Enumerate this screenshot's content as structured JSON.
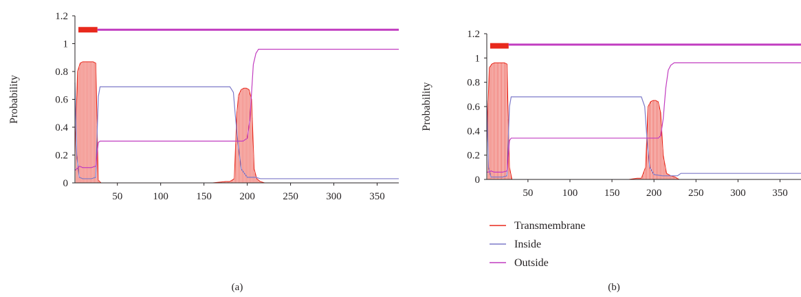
{
  "colors": {
    "transmembrane": "#e8291c",
    "transmembrane_fill": "#f08a82",
    "inside": "#7b78c8",
    "outside": "#c13cc0",
    "axis": "#231f20"
  },
  "legend": {
    "items": [
      {
        "label": "Transmembrane",
        "color": "#e8291c"
      },
      {
        "label": "Inside",
        "color": "#7b78c8"
      },
      {
        "label": "Outside",
        "color": "#c13cc0"
      }
    ]
  },
  "chart_data": [
    {
      "type": "line",
      "panel_label": "(a)",
      "ylabel": "Probability",
      "xlabel": "",
      "xlim": [
        1,
        375
      ],
      "ylim": [
        0,
        1.2
      ],
      "xticks": [
        50,
        100,
        150,
        200,
        250,
        300,
        350
      ],
      "yticks": [
        0,
        0.2,
        0.4,
        0.6,
        0.8,
        1,
        1.2
      ],
      "ytick_labels": [
        "0",
        "0.2",
        "0.4",
        "0.6",
        "0.8",
        "1",
        "1.2"
      ],
      "grid": false,
      "topology_bars": [
        {
          "series": "Transmembrane",
          "x": [
            5,
            27
          ],
          "y": 1.1
        },
        {
          "series": "Outside",
          "x": [
            27,
            375
          ],
          "y": 1.1
        }
      ],
      "series": [
        {
          "name": "Transmembrane",
          "kind": "impulse",
          "x": [
            1,
            4,
            7,
            10,
            13,
            16,
            19,
            22,
            25,
            28,
            31,
            40,
            60,
            80,
            100,
            120,
            140,
            160,
            175,
            180,
            185,
            188,
            190,
            193,
            196,
            199,
            202,
            205,
            208,
            211,
            215,
            220,
            230,
            250,
            300,
            375
          ],
          "y": [
            0.2,
            0.8,
            0.86,
            0.87,
            0.87,
            0.87,
            0.87,
            0.87,
            0.86,
            0.02,
            0.0,
            0.0,
            0.0,
            0.0,
            0.0,
            0.0,
            0.0,
            0.0,
            0.01,
            0.01,
            0.03,
            0.5,
            0.63,
            0.67,
            0.68,
            0.68,
            0.67,
            0.6,
            0.1,
            0.03,
            0.01,
            0.0,
            0.0,
            0.0,
            0.0,
            0.0
          ]
        },
        {
          "name": "Inside",
          "kind": "line",
          "x": [
            1,
            3,
            6,
            10,
            20,
            25,
            28,
            30,
            40,
            100,
            180,
            184,
            186,
            189,
            193,
            200,
            205,
            210,
            215,
            220,
            250,
            300,
            375
          ],
          "y": [
            0.72,
            0.2,
            0.04,
            0.03,
            0.03,
            0.04,
            0.62,
            0.69,
            0.69,
            0.69,
            0.69,
            0.65,
            0.5,
            0.3,
            0.1,
            0.04,
            0.04,
            0.04,
            0.03,
            0.03,
            0.03,
            0.03,
            0.03
          ]
        },
        {
          "name": "Outside",
          "kind": "line",
          "x": [
            1,
            3,
            6,
            10,
            20,
            25,
            28,
            30,
            40,
            100,
            180,
            195,
            200,
            203,
            205,
            207,
            210,
            213,
            216,
            220,
            250,
            300,
            375
          ],
          "y": [
            0.09,
            0.1,
            0.12,
            0.11,
            0.11,
            0.12,
            0.29,
            0.3,
            0.3,
            0.3,
            0.3,
            0.3,
            0.32,
            0.45,
            0.65,
            0.85,
            0.93,
            0.96,
            0.96,
            0.96,
            0.96,
            0.96,
            0.96
          ]
        }
      ]
    },
    {
      "type": "line",
      "panel_label": "(b)",
      "ylabel": "Probability",
      "xlabel": "",
      "xlim": [
        1,
        375
      ],
      "ylim": [
        0,
        1.2
      ],
      "xticks": [
        50,
        100,
        150,
        200,
        250,
        300,
        350
      ],
      "yticks": [
        0,
        0.2,
        0.4,
        0.6,
        0.8,
        1,
        1.2
      ],
      "ytick_labels": [
        "0",
        "0.2",
        "0.4",
        "0.6",
        "0.8",
        "1",
        "1.2"
      ],
      "grid": false,
      "topology_bars": [
        {
          "series": "Transmembrane",
          "x": [
            5,
            27
          ],
          "y": 1.1
        },
        {
          "series": "Outside",
          "x": [
            27,
            375
          ],
          "y": 1.11
        }
      ],
      "series": [
        {
          "name": "Transmembrane",
          "kind": "impulse",
          "x": [
            1,
            4,
            7,
            10,
            13,
            16,
            19,
            22,
            25,
            28,
            31,
            40,
            60,
            100,
            150,
            170,
            180,
            185,
            190,
            193,
            196,
            199,
            202,
            205,
            208,
            211,
            215,
            220,
            225,
            230,
            250,
            300,
            375
          ],
          "y": [
            0.3,
            0.92,
            0.95,
            0.96,
            0.96,
            0.96,
            0.96,
            0.96,
            0.95,
            0.1,
            0.0,
            0.0,
            0.0,
            0.0,
            0.0,
            0.0,
            0.01,
            0.01,
            0.1,
            0.6,
            0.64,
            0.65,
            0.65,
            0.64,
            0.55,
            0.2,
            0.05,
            0.03,
            0.02,
            0.0,
            0.0,
            0.0,
            0.0
          ]
        },
        {
          "name": "Inside",
          "kind": "line",
          "x": [
            1,
            3,
            6,
            10,
            20,
            25,
            28,
            30,
            40,
            100,
            185,
            189,
            192,
            195,
            200,
            210,
            220,
            228,
            232,
            250,
            300,
            375
          ],
          "y": [
            0.65,
            0.1,
            0.02,
            0.02,
            0.02,
            0.03,
            0.6,
            0.68,
            0.68,
            0.68,
            0.68,
            0.6,
            0.3,
            0.1,
            0.04,
            0.03,
            0.03,
            0.03,
            0.05,
            0.05,
            0.05,
            0.05
          ]
        },
        {
          "name": "Outside",
          "kind": "line",
          "x": [
            1,
            3,
            6,
            10,
            20,
            25,
            28,
            30,
            40,
            100,
            190,
            205,
            208,
            211,
            214,
            217,
            220,
            224,
            228,
            250,
            300,
            375
          ],
          "y": [
            0.06,
            0.06,
            0.07,
            0.06,
            0.06,
            0.07,
            0.32,
            0.34,
            0.34,
            0.34,
            0.34,
            0.34,
            0.36,
            0.5,
            0.75,
            0.9,
            0.94,
            0.96,
            0.96,
            0.96,
            0.96,
            0.96
          ]
        }
      ]
    }
  ]
}
